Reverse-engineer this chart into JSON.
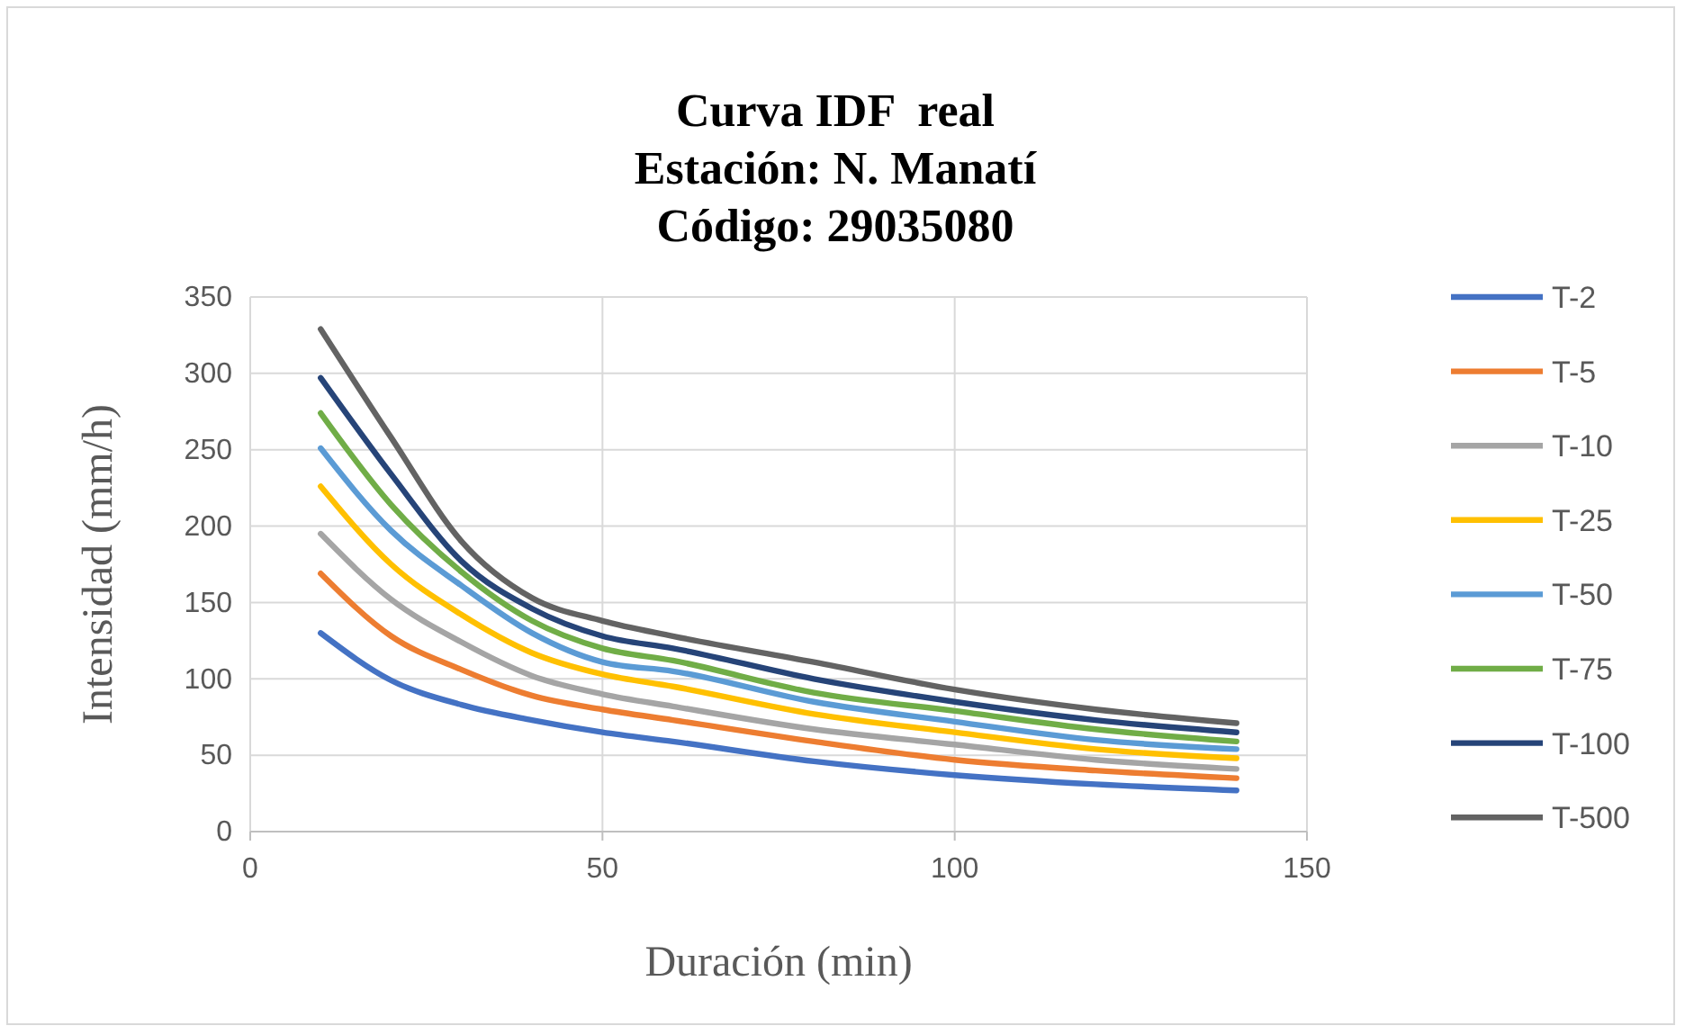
{
  "chart_data": {
    "type": "line",
    "title": "Curva IDF  real\nEstación: N. Manatí\nCódigo: 29035080",
    "xlabel": "Duración (min)",
    "ylabel": "Intensidad (mm/h)",
    "x": [
      10,
      20,
      30,
      40,
      50,
      60,
      80,
      100,
      120,
      140
    ],
    "xlim": [
      0,
      150
    ],
    "xticks": [
      0,
      50,
      100,
      150
    ],
    "ylim": [
      0,
      350
    ],
    "yticks": [
      0,
      50,
      100,
      150,
      200,
      250,
      300,
      350
    ],
    "grid": true,
    "legend": "right",
    "marker": "none",
    "line_style": "solid",
    "series": [
      {
        "name": "T-2",
        "color": "#4472c4",
        "values": [
          130,
          99,
          83,
          73,
          65,
          59,
          46,
          37,
          31,
          27
        ]
      },
      {
        "name": "T-5",
        "color": "#ed7d31",
        "values": [
          169,
          128,
          106,
          89,
          80,
          73,
          59,
          47,
          40,
          35
        ]
      },
      {
        "name": "T-10",
        "color": "#a5a5a5",
        "values": [
          195,
          152,
          124,
          102,
          90,
          82,
          67,
          57,
          47,
          41
        ]
      },
      {
        "name": "T-25",
        "color": "#ffc000",
        "values": [
          226,
          175,
          142,
          117,
          103,
          95,
          77,
          65,
          54,
          48
        ]
      },
      {
        "name": "T-50",
        "color": "#5b9bd5",
        "values": [
          251,
          197,
          161,
          130,
          111,
          105,
          85,
          72,
          60,
          54
        ]
      },
      {
        "name": "T-75",
        "color": "#70ad47",
        "values": [
          274,
          214,
          170,
          138,
          120,
          112,
          91,
          79,
          67,
          59
        ]
      },
      {
        "name": "T-100",
        "color": "#264478",
        "values": [
          297,
          234,
          177,
          146,
          128,
          120,
          100,
          85,
          73,
          65
        ]
      },
      {
        "name": "T-500",
        "color": "#636363",
        "values": [
          329,
          258,
          190,
          153,
          138,
          128,
          111,
          93,
          80,
          71
        ]
      }
    ]
  }
}
